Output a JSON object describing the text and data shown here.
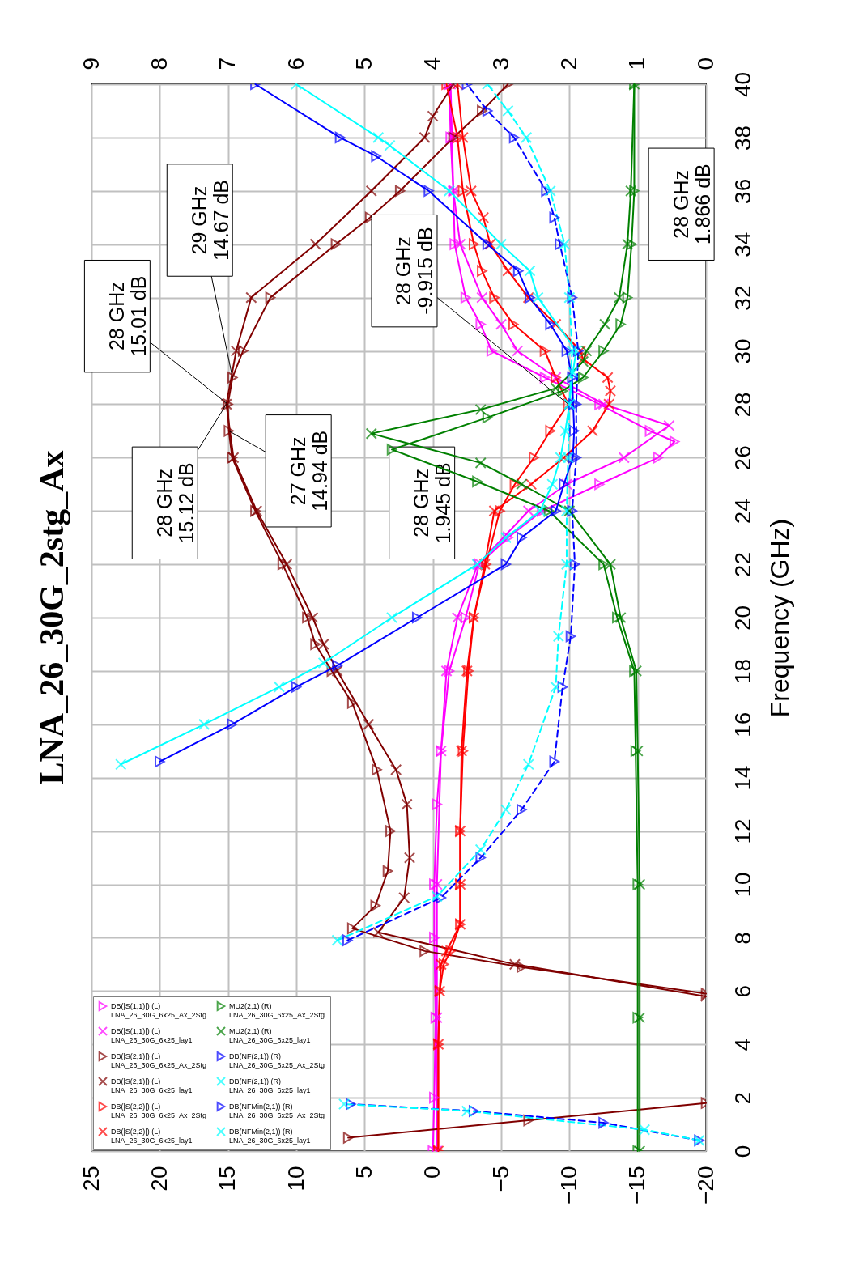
{
  "chart_data": {
    "type": "line",
    "title": "LNA_26_30G_2stg_Ax",
    "ylabel": "Frequency (GHz)",
    "ylim": [
      0,
      40
    ],
    "yticks": [
      0,
      2,
      4,
      6,
      8,
      10,
      12,
      14,
      16,
      18,
      20,
      22,
      24,
      26,
      28,
      30,
      32,
      34,
      36,
      38,
      40
    ],
    "xlim": [
      25,
      -20
    ],
    "xticks": [
      25,
      20,
      15,
      10,
      5,
      0,
      -5,
      -10,
      -15,
      -20
    ],
    "x2lim": [
      9,
      0
    ],
    "x2ticks": [
      9,
      8,
      7,
      6,
      5,
      4,
      3,
      2,
      1,
      0
    ],
    "grid": true,
    "legend": "bottom left",
    "series": [
      {
        "name": "DB(|S(1,1)|) (L)\nLNA_26_30G_6x25_Ax_2Stg",
        "color": "#ff00ff",
        "marker": "triangle",
        "line_style": "solid",
        "values": [
          0,
          2,
          5,
          8,
          10,
          13,
          15,
          18,
          20,
          22,
          23,
          24,
          25,
          26,
          26.6,
          27,
          28,
          29,
          30,
          31,
          32,
          34,
          36,
          38,
          40
        ],
        "x": [
          0,
          -0.1,
          -0.2,
          -0.1,
          -0.1,
          -0.3,
          -0.6,
          -1.2,
          -2.4,
          -3.4,
          -5.5,
          -8.0,
          -12.2,
          -16.5,
          -17.7,
          -15.9,
          -12.2,
          -8.2,
          -4.3,
          -3.5,
          -2.4,
          -1.6,
          -1.5,
          -1.3,
          -1.2
        ]
      },
      {
        "name": "DB(|S(1,1)|) (L)\nLNA_26_30G_6x25_lay1",
        "color": "#ff00ff",
        "marker": "cross",
        "line_style": "solid",
        "values": [
          0,
          5,
          10,
          15,
          18,
          20,
          22,
          24,
          25,
          26,
          27.2,
          28,
          29,
          30,
          31,
          32,
          34,
          36,
          38,
          40
        ],
        "x": [
          -0.3,
          -0.3,
          -0.3,
          -0.6,
          -1.0,
          -1.8,
          -3.3,
          -7.0,
          -9.8,
          -14.0,
          -17.3,
          -12.5,
          -9.0,
          -6.2,
          -5.0,
          -3.6,
          -2.0,
          -1.5,
          -1.4,
          -1.3
        ]
      },
      {
        "name": "DB(|S(2,1)|) (L)\nLNA_26_30G_6x25_Ax_2Stg",
        "color": "#800000",
        "marker": "triangle",
        "line_style": "solid",
        "values": [
          0.5,
          1.15,
          1.8,
          null,
          5.9,
          6.9,
          7.5,
          8.35,
          9.2,
          10.5,
          12,
          14.3,
          16.8,
          18,
          19,
          20,
          22,
          24,
          26,
          27,
          28,
          29,
          30,
          32,
          34,
          35,
          36,
          38,
          39,
          40
        ],
        "x": [
          6.2,
          -7,
          -20,
          null,
          -20,
          -6.5,
          0.6,
          5.9,
          4.2,
          3.3,
          3.1,
          4.1,
          5.9,
          7.4,
          8.6,
          9.2,
          11.0,
          13.0,
          14.7,
          14.94,
          15.01,
          14.67,
          13.9,
          11.9,
          7.1,
          4.6,
          2.4,
          -1.5,
          -3.6,
          -5.5
        ]
      },
      {
        "name": "DB(|S(2,1)|) (L)\nLNA_26_30G_6x25_lay1",
        "color": "#800000",
        "marker": "cross",
        "line_style": "solid",
        "values": [
          5.8,
          7,
          8.2,
          9.5,
          11,
          13,
          14.3,
          16,
          18,
          19,
          20,
          22,
          24,
          26,
          28,
          30,
          32,
          34,
          36,
          38,
          38.8,
          40
        ],
        "x": [
          -20,
          -6,
          4.0,
          2.1,
          1.7,
          1.9,
          2.7,
          4.7,
          7.0,
          8.0,
          8.8,
          10.7,
          12.9,
          14.6,
          15.12,
          14.4,
          13.3,
          8.6,
          4.5,
          0.6,
          0,
          -1.5
        ]
      },
      {
        "name": "DB(|S(2,2)|) (L)\nLNA_26_30G_6x25_Ax_2Stg",
        "color": "#ff0000",
        "marker": "triangle",
        "line_style": "solid",
        "values": [
          0,
          4,
          6,
          7,
          7.5,
          8.5,
          10,
          12,
          15,
          18,
          20,
          22,
          24,
          25,
          26,
          27,
          28,
          29,
          30,
          31,
          32,
          33,
          34,
          36,
          38,
          40
        ],
        "x": [
          -0.4,
          -0.4,
          -0.5,
          -0.8,
          -1.3,
          -2.0,
          -2.0,
          -2.0,
          -2.2,
          -2.6,
          -3.0,
          -3.9,
          -4.9,
          -6.0,
          -7.4,
          -8.6,
          -9.915,
          -9.0,
          -8.2,
          -5.9,
          -4.5,
          -3.6,
          -3.0,
          -2.2,
          -1.8,
          -1.0
        ]
      },
      {
        "name": "DB(|S(2,2)|) (L)\nLNA_26_30G_6x25_lay1",
        "color": "#ff0000",
        "marker": "cross",
        "line_style": "solid",
        "values": [
          0,
          4,
          6,
          7,
          7.5,
          8.5,
          10,
          12,
          15,
          18,
          20,
          22,
          24,
          25,
          26,
          27,
          28,
          28.5,
          29,
          29.7,
          30,
          31,
          32,
          33,
          34,
          35,
          36,
          38,
          40
        ],
        "x": [
          -0.4,
          -0.4,
          -0.5,
          -0.6,
          -1.0,
          -2.0,
          -2.0,
          -2.0,
          -2.1,
          -2.5,
          -3.0,
          -3.8,
          -4.5,
          -7.2,
          -9.6,
          -11.7,
          -12.9,
          -13.0,
          -12.8,
          -11.0,
          -10.8,
          -9.0,
          -7.0,
          -5.5,
          -4.2,
          -3.7,
          -2.8,
          -2.2,
          -1.8
        ]
      },
      {
        "name": "MU2(2,1) (R)\nLNA_26_30G_6x25_Ax_2Stg",
        "color": "#008000",
        "marker": "triangle",
        "line_style": "solid",
        "axis": "x2",
        "values": [
          0,
          5,
          10,
          15,
          18,
          20,
          22,
          24,
          25.1,
          26.3,
          27.5,
          28.5,
          29,
          30,
          31,
          32,
          34,
          36,
          40
        ],
        "x": [
          1.0,
          1.0,
          1.0,
          1.03,
          1.05,
          1.3,
          1.5,
          2.3,
          3.35,
          4.6,
          3.2,
          2.1,
          1.8,
          1.5,
          1.25,
          1.15,
          1.09,
          1.05,
          1.05
        ]
      },
      {
        "name": "MU2(2,1) (R)\nLNA_26_30G_6x25_lay1",
        "color": "#008000",
        "marker": "cross",
        "line_style": "solid",
        "axis": "x2",
        "values": [
          0,
          5,
          10,
          15,
          18,
          20,
          22,
          24,
          25,
          25.8,
          26.9,
          27.8,
          28.6,
          29.6,
          30,
          31,
          32,
          34,
          36,
          40
        ],
        "x": [
          0.97,
          0.97,
          0.97,
          1.0,
          1.02,
          1.25,
          1.4,
          2.0,
          2.7,
          3.3,
          4.9,
          3.3,
          2.2,
          1.8,
          1.75,
          1.48,
          1.27,
          1.15,
          1.1,
          1.05
        ]
      },
      {
        "name": "DB(NF(2,1)) (R)\nLNA_26_30G_6x25_Ax_2Stg",
        "color": "#0000ff",
        "marker": "triangle",
        "line_style": "solid",
        "axis": "x2",
        "values": [
          14.6,
          16,
          17.4,
          18.2,
          20,
          22,
          23,
          24,
          25,
          26,
          27,
          28,
          29,
          30,
          31,
          32,
          33,
          34,
          36,
          37.3,
          38,
          40
        ],
        "x": [
          8.0,
          6.94,
          6.0,
          5.4,
          4.23,
          2.93,
          2.7,
          2.2,
          2.08,
          1.95,
          1.93,
          1.945,
          1.96,
          2.04,
          2.28,
          2.58,
          2.75,
          3.2,
          4.06,
          4.83,
          5.36,
          6.6
        ]
      },
      {
        "name": "DB(NF(2,1)) (R)\nLNA_26_30G_6x25_lay1",
        "color": "#00ffff",
        "marker": "cross",
        "line_style": "solid",
        "axis": "x2",
        "values": [
          14.5,
          16,
          17.4,
          18.3,
          20,
          22,
          23,
          24,
          25,
          26,
          27,
          28,
          29.2,
          30,
          32,
          33,
          34,
          36,
          37.7,
          38,
          40
        ],
        "x": [
          8.57,
          7.35,
          6.25,
          5.6,
          4.6,
          3.35,
          2.93,
          2.43,
          2.25,
          2.13,
          2.06,
          2.0,
          1.95,
          1.9,
          2.46,
          2.58,
          3.0,
          3.76,
          4.63,
          4.8,
          6.0
        ]
      },
      {
        "name": "DB(NFMin(2,1)) (R)\nLNA_26_30G_6x25_Ax_2Stg",
        "color": "#0000ff",
        "marker": "triangle",
        "line_style": "dashed",
        "axis": "x2",
        "values": [
          0.4,
          1.06,
          1.5,
          1.76,
          null,
          7.9,
          9.5,
          11,
          12.8,
          14.6,
          17.4,
          19.3,
          22,
          24,
          26,
          28,
          30,
          32,
          34,
          35,
          36,
          38,
          39,
          40
        ],
        "x": [
          0.1,
          1.5,
          3.4,
          5.2,
          null,
          5.25,
          3.88,
          3.3,
          2.7,
          2.22,
          2.1,
          1.98,
          1.92,
          1.96,
          1.9,
          1.9,
          1.87,
          1.96,
          2.14,
          2.22,
          2.34,
          2.81,
          3.2,
          3.5
        ]
      },
      {
        "name": "DB(NFMin(2,1)) (R)\nLNA_26_30G_6x25_lay1",
        "color": "#00ffff",
        "marker": "cross",
        "line_style": "dashed",
        "axis": "x2",
        "values": [
          0.4,
          0.8,
          1.5,
          1.76,
          null,
          7.9,
          9.55,
          11.3,
          12.8,
          14.5,
          17.4,
          19.3,
          22,
          24,
          26,
          28,
          30,
          32,
          34,
          36,
          38,
          39,
          40
        ],
        "x": [
          0.1,
          0.9,
          3.5,
          5.3,
          null,
          5.4,
          3.94,
          3.3,
          2.93,
          2.6,
          2.2,
          2.16,
          2.04,
          2.04,
          2.02,
          2.0,
          1.96,
          2.0,
          2.07,
          2.28,
          2.63,
          2.9,
          3.2
        ]
      }
    ],
    "annotations": [
      {
        "text": "28 GHz\n15.01 dB",
        "x": 15.01,
        "y": 28
      },
      {
        "text": "29 GHz\n14.67 dB",
        "x": 14.67,
        "y": 29
      },
      {
        "text": "28 GHz\n15.12 dB",
        "x": 15.12,
        "y": 28
      },
      {
        "text": "27 GHz\n14.94 dB",
        "x": 14.94,
        "y": 27
      },
      {
        "text": "28 GHz\n-9.915 dB",
        "x": -9.915,
        "y": 28
      },
      "28 GHz\n1.945 dB",
      "28 GHz\n1.866 dB"
    ]
  }
}
